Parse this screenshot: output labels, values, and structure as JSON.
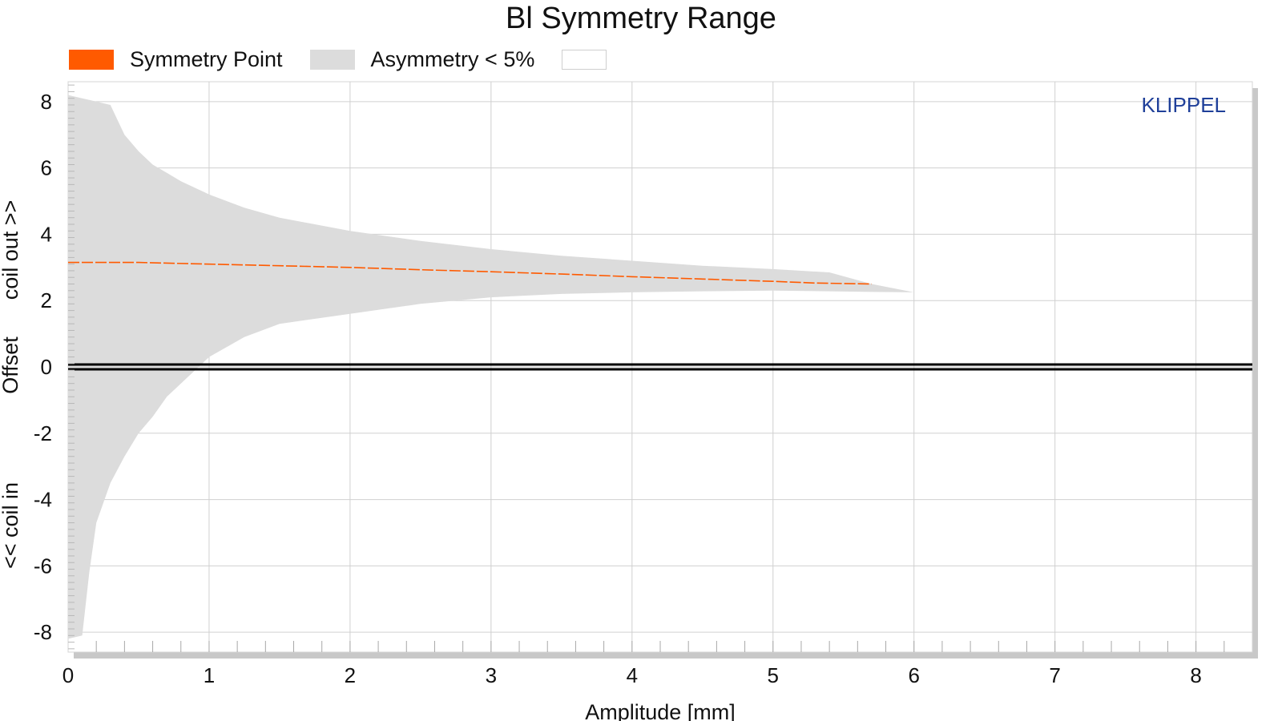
{
  "chart_data": {
    "type": "area",
    "title": "Bl Symmetry Range",
    "xlabel": "Amplitude [mm]",
    "ylabel_parts": [
      "<< coil in",
      "Offset",
      "coil out >>"
    ],
    "xlim": [
      0,
      8.4
    ],
    "ylim": [
      -8.6,
      8.6
    ],
    "xticks": [
      0,
      1,
      2,
      3,
      4,
      5,
      6,
      7,
      8
    ],
    "yticks": [
      -8,
      -6,
      -4,
      -2,
      0,
      2,
      4,
      6,
      8
    ],
    "grid": true,
    "legend_position": "top-left",
    "watermark": "KLIPPEL",
    "series": [
      {
        "name": "Symmetry Point",
        "kind": "line",
        "color": "#ff5a00",
        "x": [
          0,
          0.5,
          1,
          1.5,
          2,
          2.5,
          3,
          3.5,
          4,
          4.5,
          5,
          5.3,
          5.7
        ],
        "y": [
          3.15,
          3.15,
          3.1,
          3.05,
          3.0,
          2.93,
          2.87,
          2.8,
          2.72,
          2.65,
          2.58,
          2.53,
          2.5
        ]
      },
      {
        "name": "Asymmetry < 5%",
        "kind": "band",
        "color": "#dcdcdc",
        "x": [
          0,
          0.1,
          0.15,
          0.2,
          0.3,
          0.4,
          0.5,
          0.6,
          0.7,
          0.8,
          1.0,
          1.25,
          1.5,
          2.0,
          2.5,
          3.0,
          3.5,
          4.0,
          4.5,
          5.0,
          5.4,
          5.7,
          6.0
        ],
        "upper": [
          8.2,
          8.1,
          8.05,
          8.0,
          7.9,
          7.0,
          6.5,
          6.1,
          5.85,
          5.6,
          5.2,
          4.8,
          4.5,
          4.1,
          3.8,
          3.55,
          3.35,
          3.2,
          3.05,
          2.95,
          2.85,
          2.5,
          2.25
        ],
        "lower": [
          -8.2,
          -8.1,
          -6.2,
          -4.7,
          -3.5,
          -2.7,
          -2.0,
          -1.5,
          -0.9,
          -0.5,
          0.3,
          0.9,
          1.3,
          1.6,
          1.9,
          2.1,
          2.2,
          2.25,
          2.28,
          2.3,
          2.28,
          2.26,
          2.25
        ]
      },
      {
        "name": "",
        "kind": "legend-only",
        "color": "#ffffff"
      },
      {
        "name": "Zero line",
        "kind": "hline",
        "color": "#000000",
        "y": 0
      }
    ],
    "colors": {
      "grid": "#d0d0d0",
      "frame_shadow": "#c8c8c8",
      "watermark": "#1f3f99",
      "axis_text": "#111111"
    }
  }
}
